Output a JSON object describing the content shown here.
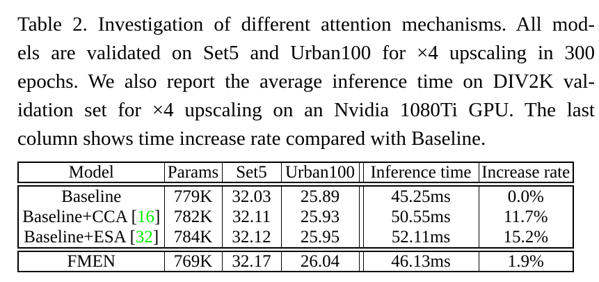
{
  "caption": {
    "lines": [
      "Table 2. Investigation of different attention mechanisms. All mod-",
      "els are validated on Set5 and Urban100 for ×4 upscaling in 300",
      "epochs. We also report the average inference time on DIV2K val-",
      "idation set for ×4 upscaling on an Nvidia 1080Ti GPU. The last",
      "column shows time increase rate compared with Baseline."
    ]
  },
  "table": {
    "headers": {
      "model": "Model",
      "params": "Params",
      "set5": "Set5",
      "urban100": "Urban100",
      "inference_time": "Inference time",
      "increase_rate": "Increase rate"
    },
    "rows": [
      {
        "model_pre": "Baseline",
        "model_cite": "",
        "model_post": "",
        "params": "779K",
        "set5": "32.03",
        "urban100": "25.89",
        "inference_time": "45.25ms",
        "increase_rate": "0.0%"
      },
      {
        "model_pre": "Baseline+CCA [",
        "model_cite": "16",
        "model_post": "]",
        "params": "782K",
        "set5": "32.11",
        "urban100": "25.93",
        "inference_time": "50.55ms",
        "increase_rate": "11.7%"
      },
      {
        "model_pre": "Baseline+ESA [",
        "model_cite": "32",
        "model_post": "]",
        "params": "784K",
        "set5": "32.12",
        "urban100": "25.95",
        "inference_time": "52.11ms",
        "increase_rate": "15.2%"
      }
    ],
    "final_row": {
      "model": "FMEN",
      "params": "769K",
      "set5": "32.17",
      "urban100": "26.04",
      "inference_time": "46.13ms",
      "increase_rate": "1.9%"
    },
    "colors": {
      "citation_green": "#00ee00",
      "text": "#000000",
      "background": "#ffffff"
    }
  }
}
